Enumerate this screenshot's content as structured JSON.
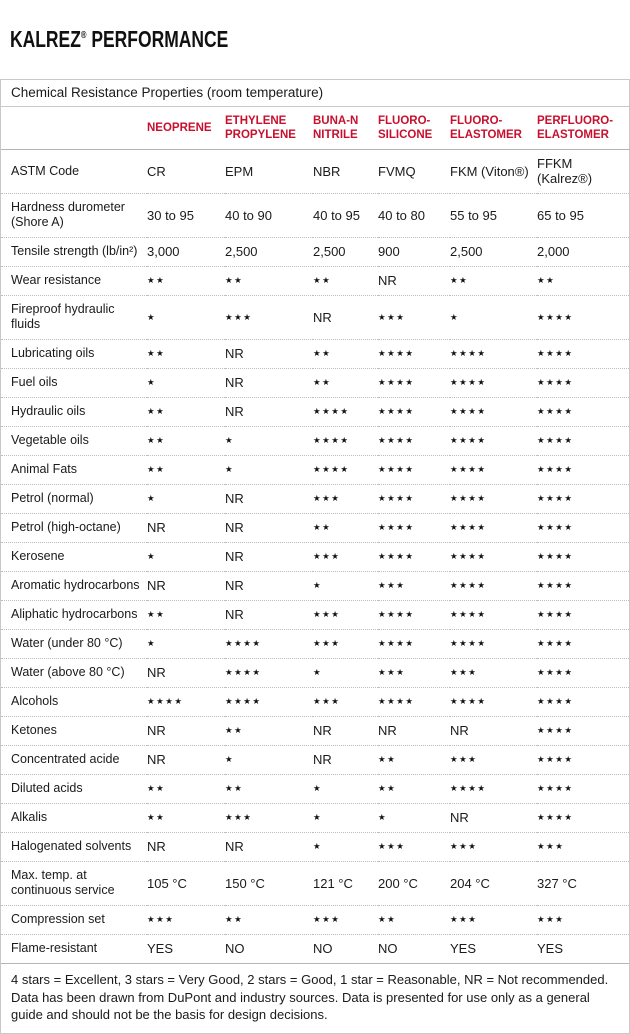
{
  "header": {
    "brand": "KALREZ",
    "registered_mark": "®",
    "title_rest": " PERFORMANCE"
  },
  "colors": {
    "accent_red": "#c8102e"
  },
  "table": {
    "title": "Chemical Resistance Properties (room temperature)",
    "corner_label": "",
    "columns": [
      "NEOPRENE",
      "ETHYLENE\nPROPYLENE",
      "BUNA-N\nNITRILE",
      "FLUORO-\nSILICONE",
      "FLUORO-\nELASTOMER",
      "PERFLUORO-\nELASTOMER"
    ],
    "rows": [
      {
        "property": "ASTM Code",
        "values": [
          "CR",
          "EPM",
          "NBR",
          "FVMQ",
          "FKM (Viton®)",
          "FFKM (Kalrez®)"
        ]
      },
      {
        "property": "Hardness durometer\n(Shore A)",
        "values": [
          "30 to 95",
          "40 to 90",
          "40 to 95",
          "40 to 80",
          "55 to 95",
          "65 to 95"
        ]
      },
      {
        "property": "Tensile strength (lb/in²)",
        "values": [
          "3,000",
          "2,500",
          "2,500",
          "900",
          "2,500",
          "2,000"
        ]
      },
      {
        "property": "Wear resistance",
        "values": [
          "★★",
          "★★",
          "★★",
          "NR",
          "★★",
          "★★"
        ]
      },
      {
        "property": "Fireproof hydraulic fluids",
        "values": [
          "★",
          "★★★",
          "NR",
          "★★★",
          "★",
          "★★★★"
        ]
      },
      {
        "property": "Lubricating oils",
        "values": [
          "★★",
          "NR",
          "★★",
          "★★★★",
          "★★★★",
          "★★★★"
        ]
      },
      {
        "property": "Fuel oils",
        "values": [
          "★",
          "NR",
          "★★",
          "★★★★",
          "★★★★",
          "★★★★"
        ]
      },
      {
        "property": "Hydraulic oils",
        "values": [
          "★★",
          "NR",
          "★★★★",
          "★★★★",
          "★★★★",
          "★★★★"
        ]
      },
      {
        "property": "Vegetable oils",
        "values": [
          "★★",
          "★",
          "★★★★",
          "★★★★",
          "★★★★",
          "★★★★"
        ]
      },
      {
        "property": "Animal Fats",
        "values": [
          "★★",
          "★",
          "★★★★",
          "★★★★",
          "★★★★",
          "★★★★"
        ]
      },
      {
        "property": "Petrol (normal)",
        "values": [
          "★",
          "NR",
          "★★★",
          "★★★★",
          "★★★★",
          "★★★★"
        ]
      },
      {
        "property": "Petrol (high-octane)",
        "values": [
          "NR",
          "NR",
          "★★",
          "★★★★",
          "★★★★",
          "★★★★"
        ]
      },
      {
        "property": "Kerosene",
        "values": [
          "★",
          "NR",
          "★★★",
          "★★★★",
          "★★★★",
          "★★★★"
        ]
      },
      {
        "property": "Aromatic hydrocarbons",
        "values": [
          "NR",
          "NR",
          "★",
          "★★★",
          "★★★★",
          "★★★★"
        ]
      },
      {
        "property": "Aliphatic hydrocarbons",
        "values": [
          "★★",
          "NR",
          "★★★",
          "★★★★",
          "★★★★",
          "★★★★"
        ]
      },
      {
        "property": "Water (under 80 °C)",
        "values": [
          "★",
          "★★★★",
          "★★★",
          "★★★★",
          "★★★★",
          "★★★★"
        ]
      },
      {
        "property": "Water (above 80 °C)",
        "values": [
          "NR",
          "★★★★",
          "★",
          "★★★",
          "★★★",
          "★★★★"
        ]
      },
      {
        "property": "Alcohols",
        "values": [
          "★★★★",
          "★★★★",
          "★★★",
          "★★★★",
          "★★★★",
          "★★★★"
        ]
      },
      {
        "property": "Ketones",
        "values": [
          "NR",
          "★★",
          "NR",
          "NR",
          "NR",
          "★★★★"
        ]
      },
      {
        "property": "Concentrated acide",
        "values": [
          "NR",
          "★",
          "NR",
          "★★",
          "★★★",
          "★★★★"
        ]
      },
      {
        "property": "Diluted acids",
        "values": [
          "★★",
          "★★",
          "★",
          "★★",
          "★★★★",
          "★★★★"
        ]
      },
      {
        "property": "Alkalis",
        "values": [
          "★★",
          "★★★",
          "★",
          "★",
          "NR",
          "★★★★"
        ]
      },
      {
        "property": "Halogenated solvents",
        "values": [
          "NR",
          "NR",
          "★",
          "★★★",
          "★★★",
          "★★★"
        ]
      },
      {
        "property": "Max. temp. at\ncontinuous service",
        "values": [
          "105 °C",
          "150 °C",
          "121 °C",
          "200 °C",
          "204 °C",
          "327 °C"
        ]
      },
      {
        "property": "Compression set",
        "values": [
          "★★★",
          "★★",
          "★★★",
          "★★",
          "★★★",
          "★★★"
        ]
      },
      {
        "property": "Flame-resistant",
        "values": [
          "YES",
          "NO",
          "NO",
          "NO",
          "YES",
          "YES"
        ]
      }
    ]
  },
  "footnote": {
    "legend": "4 stars = Excellent, 3 stars = Very Good, 2 stars = Good, 1 star = Reasonable, NR = Not recommended.",
    "disclaimer": "Data has been drawn from DuPont and industry sources. Data is presented for use only as a general guide and should not be the basis for design decisions."
  }
}
